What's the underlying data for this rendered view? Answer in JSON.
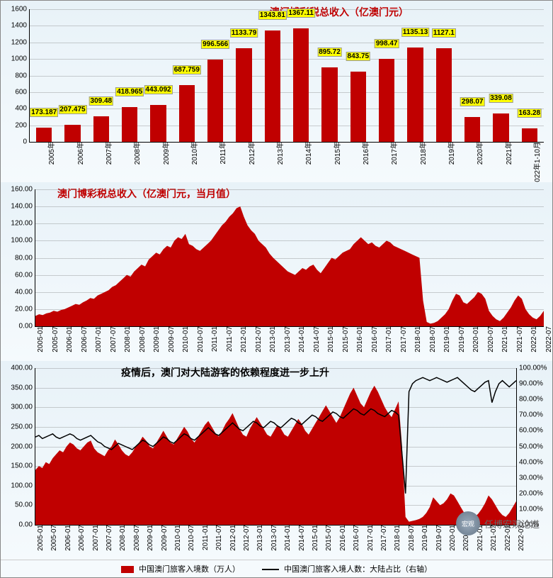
{
  "chart1": {
    "type": "bar",
    "title": "澳门博彩税总收入（亿澳门元）",
    "title_color": "#c00000",
    "title_fontsize": 14,
    "bar_color": "#c00000",
    "label_bg": "#ffff00",
    "background_gradient": [
      "#e8f2f8",
      "#f5fafd"
    ],
    "grid_color": "rgba(120,120,120,.35)",
    "ylim": [
      0,
      1600
    ],
    "ytick_step": 200,
    "categories": [
      "2005年",
      "2006年",
      "2007年",
      "2008年",
      "2009年",
      "2010年",
      "2011年",
      "2012年",
      "2013年",
      "2014年",
      "2015年",
      "2016年",
      "2017年",
      "2018年",
      "2019年",
      "2020年",
      "2021年",
      "2022年1-10月"
    ],
    "values": [
      173.187,
      207.475,
      309.48,
      418.965,
      443.092,
      687.759,
      996.566,
      1133.79,
      1343.81,
      1367.11,
      895.72,
      843.75,
      998.47,
      1135.13,
      1127.1,
      298.07,
      339.08,
      163.28
    ],
    "bar_width": 0.55
  },
  "chart2": {
    "type": "area",
    "title": "澳门博彩税总收入（亿澳门元，当月值）",
    "title_color": "#c00000",
    "fill_color": "#c00000",
    "ylim": [
      0,
      160
    ],
    "ytick_step": 20,
    "ytick_decimals": 2,
    "x_labels": [
      "2005-01",
      "2005-07",
      "2006-01",
      "2006-07",
      "2007-01",
      "2007-07",
      "2008-01",
      "2008-07",
      "2009-01",
      "2009-07",
      "2010-01",
      "2010-07",
      "2011-01",
      "2011-07",
      "2012-01",
      "2012-07",
      "2013-01",
      "2013-07",
      "2014-01",
      "2014-07",
      "2015-01",
      "2015-07",
      "2016-01",
      "2016-07",
      "2017-01",
      "2017-07",
      "2018-01",
      "2018-07",
      "2019-01",
      "2019-07",
      "2020-01",
      "2020-07",
      "2021-01",
      "2021-07",
      "2022-01",
      "2022-07"
    ],
    "values": [
      12,
      14,
      13,
      15,
      16,
      18,
      17,
      19,
      20,
      22,
      24,
      26,
      25,
      28,
      30,
      33,
      32,
      36,
      38,
      40,
      42,
      46,
      48,
      52,
      56,
      60,
      58,
      64,
      68,
      72,
      70,
      78,
      82,
      86,
      84,
      90,
      94,
      92,
      100,
      104,
      102,
      108,
      96,
      94,
      90,
      88,
      92,
      96,
      100,
      106,
      112,
      118,
      122,
      128,
      132,
      138,
      140,
      128,
      118,
      112,
      108,
      100,
      96,
      92,
      85,
      80,
      76,
      72,
      68,
      64,
      62,
      60,
      64,
      68,
      66,
      70,
      72,
      66,
      62,
      68,
      74,
      80,
      78,
      82,
      86,
      88,
      90,
      96,
      100,
      104,
      100,
      96,
      98,
      94,
      92,
      96,
      100,
      98,
      94,
      92,
      90,
      88,
      86,
      84,
      82,
      80,
      30,
      5,
      3,
      4,
      6,
      10,
      14,
      20,
      30,
      38,
      36,
      28,
      26,
      30,
      34,
      40,
      38,
      32,
      18,
      12,
      8,
      6,
      10,
      16,
      22,
      30,
      36,
      32,
      20,
      14,
      10,
      8,
      12,
      18
    ]
  },
  "chart3": {
    "type": "area+line",
    "title": "疫情后，澳门对大陆游客的依赖程度进一步上升",
    "title_color": "#000000",
    "fill_color": "#c00000",
    "line_color": "#000000",
    "ylim_left": [
      0,
      400
    ],
    "ytick_left_step": 50,
    "ytick_left_decimals": 2,
    "ylim_right": [
      0,
      100
    ],
    "ytick_right_step": 10,
    "ytick_right_suffix": "%",
    "ytick_right_decimals": 2,
    "x_labels": [
      "2005-01",
      "2005-07",
      "2006-01",
      "2006-07",
      "2007-01",
      "2007-07",
      "2008-01",
      "2008-07",
      "2009-01",
      "2009-07",
      "2010-01",
      "2010-07",
      "2011-01",
      "2011-07",
      "2012-01",
      "2012-07",
      "2013-01",
      "2013-07",
      "2014-01",
      "2014-07",
      "2015-01",
      "2015-07",
      "2016-01",
      "2016-07",
      "2017-01",
      "2017-07",
      "2018-01",
      "2018-07",
      "2019-01",
      "2019-07",
      "2020-01",
      "2020-07",
      "2021-01",
      "2021-07",
      "2022-01",
      "2022-07"
    ],
    "area_values": [
      140,
      150,
      145,
      160,
      155,
      170,
      180,
      190,
      185,
      200,
      210,
      205,
      195,
      190,
      200,
      210,
      215,
      195,
      185,
      180,
      175,
      190,
      200,
      218,
      205,
      190,
      180,
      175,
      185,
      200,
      210,
      225,
      215,
      200,
      195,
      210,
      225,
      240,
      225,
      210,
      205,
      220,
      235,
      250,
      238,
      220,
      210,
      225,
      240,
      255,
      265,
      250,
      235,
      225,
      240,
      258,
      270,
      285,
      265,
      245,
      230,
      225,
      245,
      260,
      275,
      260,
      245,
      230,
      225,
      240,
      255,
      245,
      230,
      225,
      240,
      255,
      270,
      258,
      240,
      230,
      245,
      260,
      275,
      290,
      305,
      290,
      275,
      260,
      275,
      295,
      315,
      335,
      350,
      330,
      310,
      300,
      320,
      340,
      355,
      340,
      320,
      300,
      285,
      275,
      295,
      315,
      200,
      20,
      8,
      10,
      12,
      15,
      20,
      30,
      45,
      70,
      60,
      50,
      55,
      65,
      80,
      75,
      60,
      45,
      30,
      20,
      15,
      20,
      28,
      40,
      55,
      75,
      65,
      50,
      35,
      25,
      20,
      30,
      45,
      60
    ],
    "line_values": [
      56,
      57,
      55,
      56,
      57,
      58,
      56,
      55,
      56,
      57,
      58,
      57,
      55,
      54,
      55,
      56,
      57,
      55,
      53,
      52,
      50,
      49,
      48,
      50,
      52,
      51,
      50,
      49,
      48,
      50,
      52,
      54,
      53,
      51,
      50,
      52,
      54,
      56,
      55,
      53,
      52,
      54,
      56,
      58,
      57,
      55,
      54,
      56,
      58,
      60,
      62,
      60,
      58,
      57,
      59,
      61,
      63,
      65,
      63,
      61,
      60,
      62,
      64,
      66,
      65,
      63,
      62,
      64,
      66,
      65,
      63,
      62,
      64,
      66,
      68,
      67,
      65,
      64,
      66,
      68,
      70,
      69,
      67,
      66,
      68,
      70,
      72,
      71,
      69,
      68,
      70,
      72,
      74,
      73,
      71,
      70,
      72,
      74,
      73,
      71,
      70,
      69,
      71,
      73,
      72,
      70,
      45,
      20,
      85,
      90,
      92,
      93,
      94,
      93,
      92,
      93,
      94,
      93,
      92,
      91,
      92,
      93,
      94,
      92,
      90,
      88,
      86,
      85,
      87,
      89,
      91,
      92,
      78,
      85,
      90,
      92,
      90,
      88,
      90,
      92
    ],
    "legend": {
      "series1": "中国澳门旅客入境数（万人）",
      "series2": "中国澳门旅客入境人数：大陆占比（右轴）"
    }
  },
  "watermark": "任博宏观论道"
}
